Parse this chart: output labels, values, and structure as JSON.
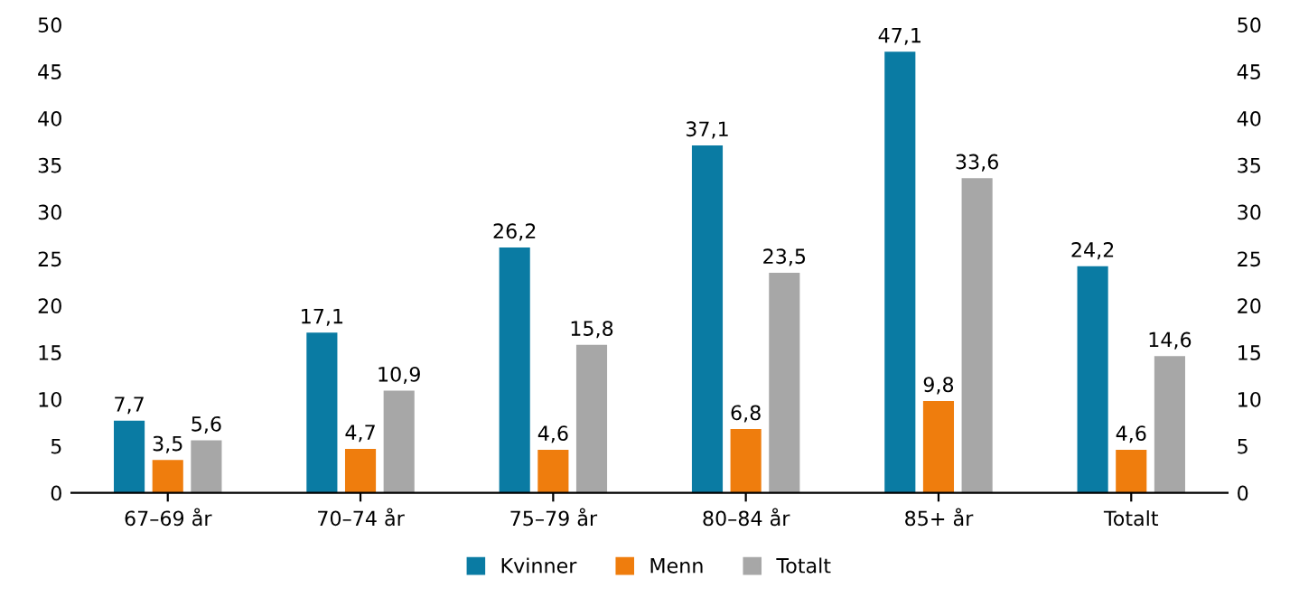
{
  "chart_data": {
    "type": "bar",
    "categories": [
      "67–69 år",
      "70–74 år",
      "75–79 år",
      "80–84 år",
      "85+ år",
      "Totalt"
    ],
    "series": [
      {
        "name": "Kvinner",
        "color": "#0a7ba3",
        "values": [
          7.7,
          17.1,
          26.2,
          37.1,
          47.1,
          24.2
        ]
      },
      {
        "name": "Menn",
        "color": "#ef7d0d",
        "values": [
          3.5,
          4.7,
          4.6,
          6.8,
          9.8,
          4.6
        ]
      },
      {
        "name": "Totalt",
        "color": "#a7a7a7",
        "values": [
          5.6,
          10.9,
          15.8,
          23.5,
          33.6,
          14.6
        ]
      }
    ],
    "value_labels": [
      [
        "7,7",
        "17,1",
        "26,2",
        "37,1",
        "47,1",
        "24,2"
      ],
      [
        "3,5",
        "4,7",
        "4,6",
        "6,8",
        "9,8",
        "4,6"
      ],
      [
        "5,6",
        "10,9",
        "15,8",
        "23,5",
        "33,6",
        "14,6"
      ]
    ],
    "ylim": [
      0,
      50
    ],
    "yticks": [
      0,
      5,
      10,
      15,
      20,
      25,
      30,
      35,
      40,
      45,
      50
    ],
    "y2lim": [
      0,
      50
    ],
    "y2ticks": [
      0,
      5,
      10,
      15,
      20,
      25,
      30,
      35,
      40,
      45,
      50
    ],
    "grid": false,
    "legend": "bottom"
  }
}
